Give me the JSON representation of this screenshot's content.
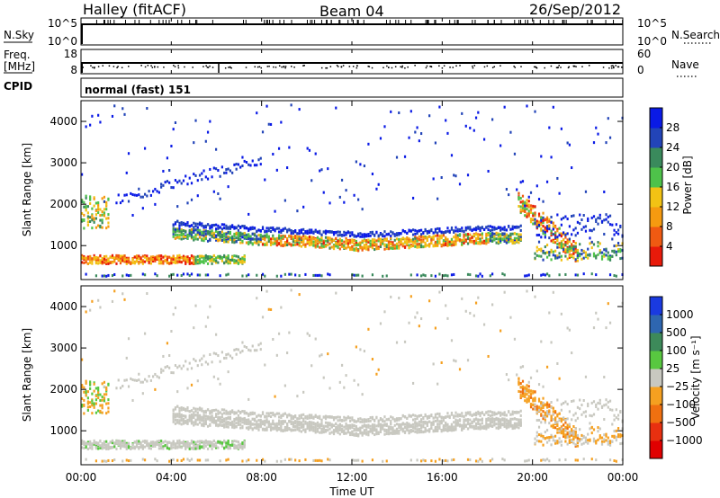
{
  "header": {
    "station": "Halley (fitACF)",
    "beam": "Beam 04",
    "date": "26/Sep/2012"
  },
  "top_panels": {
    "nsky": {
      "label": "N.Sky",
      "ticks": [
        "10^5",
        "10^0"
      ]
    },
    "nsearch": {
      "label": "N.Search",
      "ticks": [
        "10^5",
        "10^0"
      ]
    },
    "freq": {
      "label_line1": "Freq.",
      "label_line2": "[MHz]",
      "ticks": [
        "18",
        "8"
      ]
    },
    "nave": {
      "label": "Nave",
      "ticks": [
        "60",
        "0"
      ]
    },
    "cpid": {
      "label": "CPID",
      "value": "normal (fast) 151"
    }
  },
  "chart_data": [
    {
      "type": "heatmap",
      "name": "Power",
      "ylabel": "Slant Range [km]",
      "ylim": [
        180,
        4500
      ],
      "y_ticks": [
        "1000",
        "2000",
        "3000",
        "4000"
      ],
      "xlim": [
        "00:00",
        "24:00"
      ],
      "colorbar_label": "Power [dB]",
      "colorbar_ticks": [
        "4",
        "8",
        "12",
        "16",
        "20",
        "24",
        "28"
      ],
      "colorbar_colors": [
        "#0a1ae6",
        "#2244b8",
        "#3a8a5c",
        "#4ec24a",
        "#f2c214",
        "#f59a10",
        "#f05a12",
        "#e81a0a"
      ]
    },
    {
      "type": "heatmap",
      "name": "Velocity",
      "ylabel": "Slant Range [km]",
      "ylim": [
        180,
        4500
      ],
      "y_ticks": [
        "1000",
        "2000",
        "3000",
        "4000"
      ],
      "xlim": [
        "00:00",
        "24:00"
      ],
      "xlabel": "Time UT",
      "x_ticks": [
        "00:00",
        "04:00",
        "08:00",
        "12:00",
        "16:00",
        "20:00",
        "00:00"
      ],
      "colorbar_label": "Velocity [m s⁻¹]",
      "colorbar_ticks": [
        "1000",
        "500",
        "100",
        "25",
        "−25",
        "−100",
        "−500",
        "−1000"
      ],
      "colorbar_colors": [
        "#1a3ae0",
        "#2e66b0",
        "#3d8a5a",
        "#58c840",
        "#c8c8c0",
        "#f5a020",
        "#f07010",
        "#e83010",
        "#e00000"
      ]
    }
  ]
}
